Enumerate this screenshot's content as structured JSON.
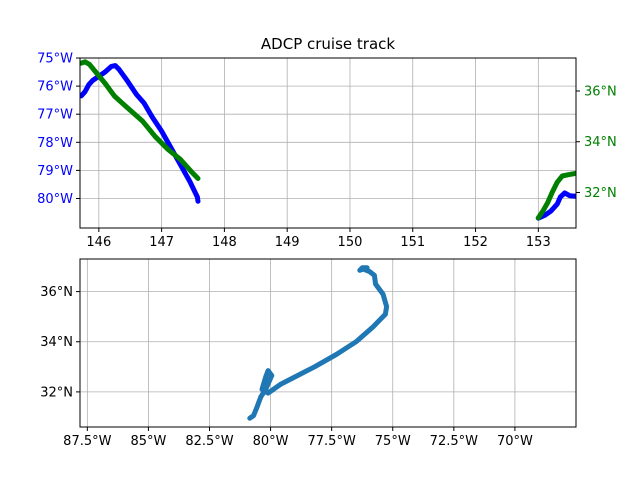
{
  "chart_data": [
    {
      "type": "line",
      "title": "ADCP cruise track",
      "xlabel": "",
      "ylabel": "",
      "xlim": [
        145.7,
        153.6
      ],
      "xticks": [
        "146",
        "147",
        "148",
        "149",
        "150",
        "151",
        "152",
        "153"
      ],
      "xtick_values": [
        146,
        147,
        148,
        149,
        150,
        151,
        152,
        153
      ],
      "grid": true,
      "left_axis": {
        "ylim": [
          -81.05,
          -75.0
        ],
        "color": "#0000ff",
        "ticks": [
          "75°W",
          "76°W",
          "77°W",
          "78°W",
          "79°W",
          "80°W"
        ],
        "tick_values": [
          -75,
          -76,
          -77,
          -78,
          -79,
          -80
        ]
      },
      "right_axis": {
        "ylim": [
          30.6,
          37.3
        ],
        "color": "#008000",
        "ticks": [
          "32°N",
          "34°N",
          "36°N"
        ],
        "tick_values": [
          32,
          34,
          36
        ]
      },
      "series": [
        {
          "name": "",
          "axis": "left",
          "color": "#0000ff",
          "segments": [
            [
              [
                145.72,
                -76.35
              ],
              [
                145.78,
                -76.2
              ],
              [
                145.84,
                -75.95
              ],
              [
                145.9,
                -75.8
              ],
              [
                146.0,
                -75.65
              ],
              [
                146.1,
                -75.5
              ],
              [
                146.2,
                -75.3
              ],
              [
                146.26,
                -75.27
              ],
              [
                146.32,
                -75.4
              ],
              [
                146.45,
                -75.8
              ],
              [
                146.6,
                -76.3
              ],
              [
                146.72,
                -76.6
              ],
              [
                146.85,
                -77.1
              ],
              [
                147.0,
                -77.6
              ],
              [
                147.15,
                -78.2
              ],
              [
                147.3,
                -78.8
              ],
              [
                147.45,
                -79.4
              ],
              [
                147.57,
                -79.95
              ],
              [
                147.58,
                -80.1
              ]
            ],
            [
              [
                153.0,
                -80.7
              ],
              [
                153.1,
                -80.6
              ],
              [
                153.2,
                -80.45
              ],
              [
                153.3,
                -80.2
              ],
              [
                153.35,
                -79.95
              ],
              [
                153.42,
                -79.8
              ],
              [
                153.5,
                -79.9
              ],
              [
                153.6,
                -79.92
              ]
            ]
          ]
        },
        {
          "name": "",
          "axis": "right",
          "color": "#008000",
          "segments": [
            [
              [
                145.72,
                37.1
              ],
              [
                145.78,
                37.15
              ],
              [
                145.85,
                37.05
              ],
              [
                145.95,
                36.75
              ],
              [
                146.1,
                36.3
              ],
              [
                146.25,
                35.8
              ],
              [
                146.45,
                35.35
              ],
              [
                146.7,
                34.8
              ],
              [
                146.9,
                34.2
              ],
              [
                147.1,
                33.7
              ],
              [
                147.3,
                33.3
              ],
              [
                147.5,
                32.75
              ],
              [
                147.58,
                32.55
              ]
            ],
            [
              [
                153.0,
                31.0
              ],
              [
                153.08,
                31.3
              ],
              [
                153.15,
                31.6
              ],
              [
                153.22,
                32.0
              ],
              [
                153.3,
                32.4
              ],
              [
                153.38,
                32.65
              ],
              [
                153.48,
                32.7
              ],
              [
                153.6,
                32.75
              ]
            ]
          ]
        }
      ]
    },
    {
      "type": "line",
      "title": "",
      "xlabel": "",
      "ylabel": "",
      "xlim": [
        -87.8,
        -67.5
      ],
      "ylim": [
        30.6,
        37.3
      ],
      "grid": true,
      "xticks": [
        "87.5°W",
        "85°W",
        "82.5°W",
        "80°W",
        "77.5°W",
        "75°W",
        "72.5°W",
        "70°W"
      ],
      "xtick_values": [
        -87.5,
        -85,
        -82.5,
        -80,
        -77.5,
        -75,
        -72.5,
        -70
      ],
      "yticks": [
        "32°N",
        "34°N",
        "36°N"
      ],
      "ytick_values": [
        32,
        34,
        36
      ],
      "series": [
        {
          "name": "",
          "color": "#1f77b4",
          "points": [
            [
              -80.85,
              30.95
            ],
            [
              -80.7,
              31.05
            ],
            [
              -80.55,
              31.4
            ],
            [
              -80.4,
              31.8
            ],
            [
              -80.2,
              32.1
            ],
            [
              -80.0,
              32.55
            ],
            [
              -79.95,
              32.65
            ],
            [
              -80.1,
              32.85
            ],
            [
              -80.2,
              32.6
            ],
            [
              -80.35,
              32.1
            ],
            [
              -80.1,
              31.95
            ],
            [
              -79.6,
              32.3
            ],
            [
              -79.0,
              32.6
            ],
            [
              -78.2,
              33.0
            ],
            [
              -77.3,
              33.5
            ],
            [
              -76.5,
              34.0
            ],
            [
              -75.8,
              34.6
            ],
            [
              -75.3,
              35.1
            ],
            [
              -75.25,
              35.4
            ],
            [
              -75.4,
              35.9
            ],
            [
              -75.7,
              36.3
            ],
            [
              -75.75,
              36.65
            ],
            [
              -75.95,
              36.8
            ],
            [
              -76.2,
              36.9
            ],
            [
              -76.35,
              36.85
            ],
            [
              -76.25,
              36.95
            ],
            [
              -76.05,
              36.95
            ]
          ]
        }
      ]
    }
  ]
}
